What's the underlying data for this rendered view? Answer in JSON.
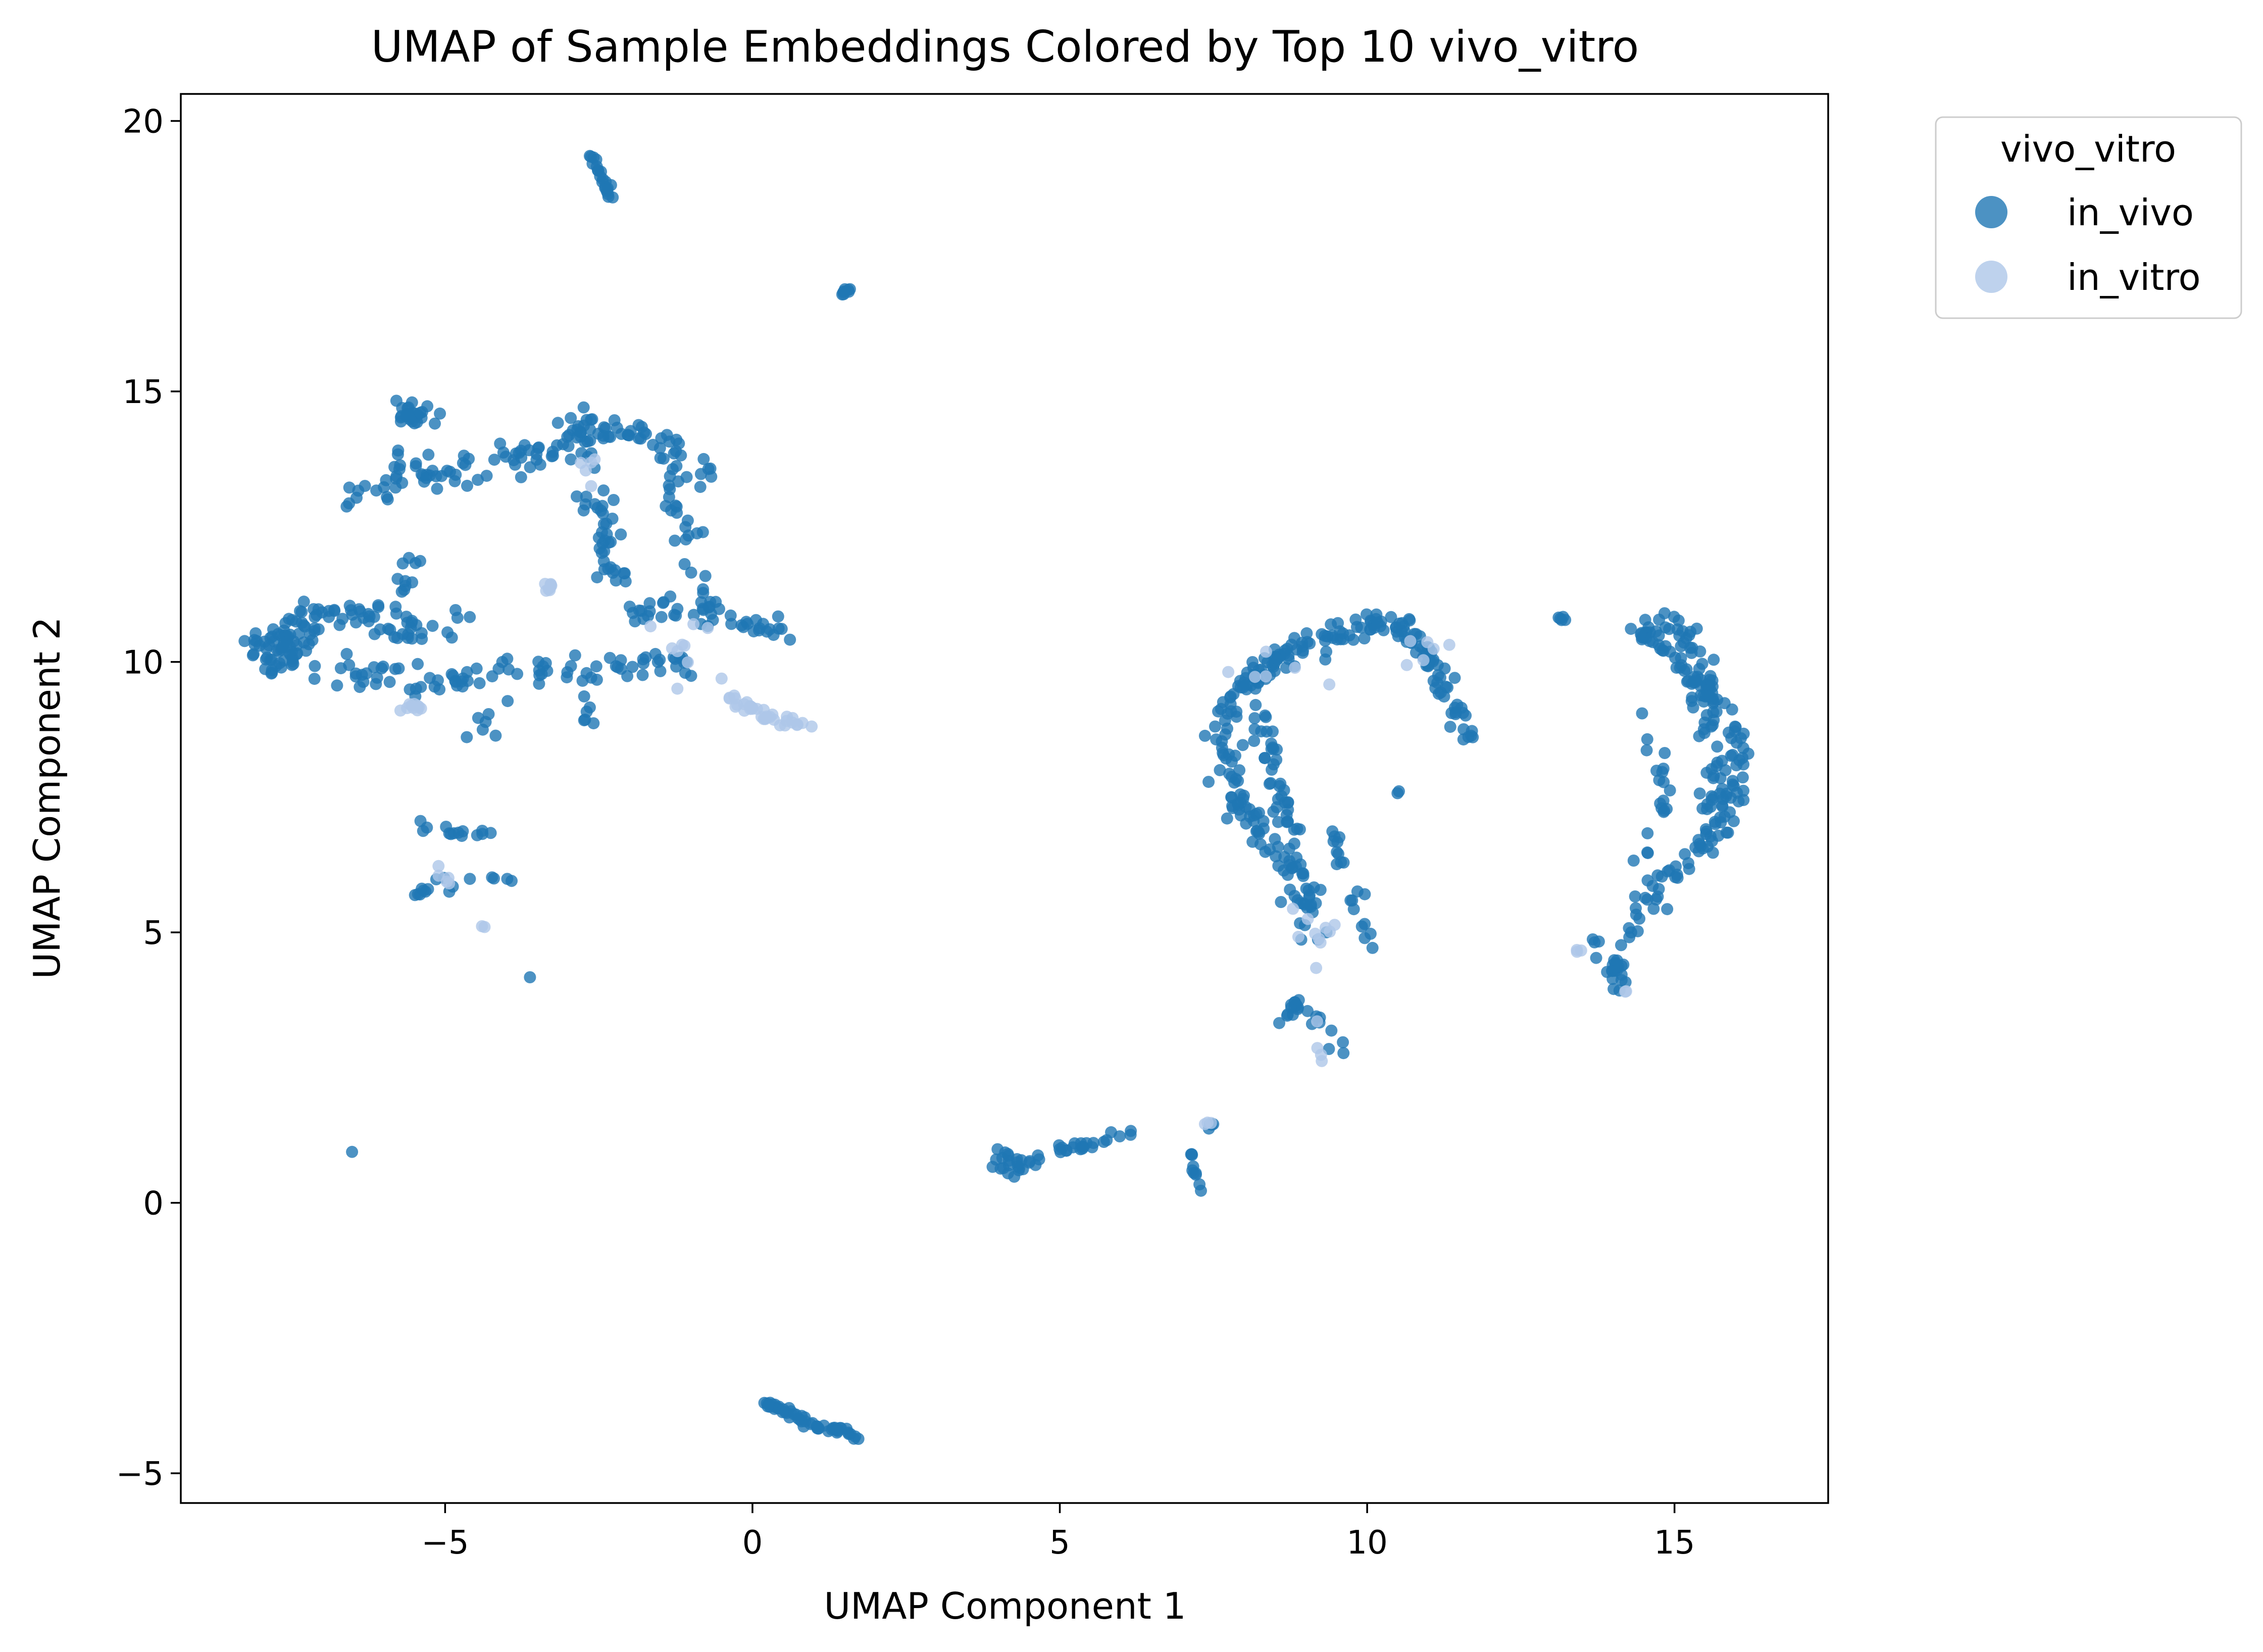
{
  "chart_data": {
    "type": "scatter",
    "title": "UMAP of Sample Embeddings Colored by Top 10 vivo_vitro",
    "xlabel": "UMAP Component 1",
    "ylabel": "UMAP Component 2",
    "xlim": [
      -9.3,
      17.5
    ],
    "ylim": [
      -5.55,
      20.5
    ],
    "xticks": [
      -5,
      0,
      5,
      10,
      15
    ],
    "yticks": [
      -5,
      0,
      5,
      10,
      15,
      20
    ],
    "xtick_labels": [
      "−5",
      "0",
      "5",
      "10",
      "15"
    ],
    "ytick_labels": [
      "−5",
      "0",
      "5",
      "10",
      "15",
      "20"
    ],
    "grid": false,
    "legend": {
      "title": "vivo_vitro",
      "placement": "outside-top-right",
      "entries": [
        "in_vivo",
        "in_vitro"
      ]
    },
    "series": [
      {
        "name": "in_vivo",
        "color": "#1f77b4",
        "clusters": [
          {
            "type": "blob",
            "cx": -7.6,
            "cy": 10.3,
            "rx": 0.6,
            "ry": 0.35,
            "n": 45
          },
          {
            "type": "path",
            "points": [
              [
                -8.1,
                10.1
              ],
              [
                -7.2,
                10.9
              ],
              [
                -6.2,
                10.9
              ],
              [
                -5.6,
                10.5
              ],
              [
                -4.8,
                10.7
              ]
            ],
            "w": 0.3,
            "n": 70
          },
          {
            "type": "path",
            "points": [
              [
                -8.0,
                10.0
              ],
              [
                -7.0,
                9.8
              ],
              [
                -6.0,
                9.7
              ],
              [
                -5.2,
                9.6
              ],
              [
                -4.0,
                9.8
              ],
              [
                -3.0,
                9.8
              ],
              [
                -2.0,
                9.9
              ],
              [
                -1.0,
                10.0
              ]
            ],
            "w": 0.25,
            "n": 95
          },
          {
            "type": "path",
            "points": [
              [
                -6.5,
                12.9
              ],
              [
                -5.8,
                13.6
              ],
              [
                -5.0,
                13.4
              ],
              [
                -4.0,
                13.8
              ],
              [
                -3.0,
                13.9
              ],
              [
                -2.2,
                14.3
              ],
              [
                -1.6,
                14.2
              ],
              [
                -0.8,
                13.4
              ]
            ],
            "w": 0.3,
            "n": 110
          },
          {
            "type": "blob",
            "cx": -5.5,
            "cy": 14.6,
            "rx": 0.25,
            "ry": 0.2,
            "n": 25
          },
          {
            "type": "blob",
            "cx": -2.8,
            "cy": 14.3,
            "rx": 0.3,
            "ry": 0.25,
            "n": 20
          },
          {
            "type": "path",
            "points": [
              [
                -2.8,
                13.9
              ],
              [
                -2.5,
                12.8
              ],
              [
                -2.3,
                11.6
              ],
              [
                -2.0,
                11.0
              ],
              [
                -1.2,
                11.0
              ],
              [
                -0.5,
                10.8
              ],
              [
                0.3,
                10.6
              ],
              [
                0.7,
                10.5
              ]
            ],
            "w": 0.3,
            "n": 85
          },
          {
            "type": "path",
            "points": [
              [
                -1.2,
                14.0
              ],
              [
                -1.2,
                12.8
              ],
              [
                -1.0,
                11.8
              ],
              [
                -0.7,
                11.2
              ]
            ],
            "w": 0.25,
            "n": 25
          },
          {
            "type": "path",
            "points": [
              [
                -5.8,
                11.0
              ],
              [
                -5.6,
                11.9
              ],
              [
                -5.3,
                11.6
              ]
            ],
            "w": 0.2,
            "n": 12
          },
          {
            "type": "path",
            "points": [
              [
                -5.7,
                7.2
              ],
              [
                -5.3,
                7.0
              ],
              [
                -4.7,
                6.8
              ],
              [
                -4.2,
                6.8
              ]
            ],
            "w": 0.15,
            "n": 14
          },
          {
            "type": "path",
            "points": [
              [
                -5.6,
                5.7
              ],
              [
                -5.0,
                5.9
              ],
              [
                -4.5,
                6.0
              ],
              [
                -3.8,
                6.0
              ]
            ],
            "w": 0.15,
            "n": 16
          },
          {
            "type": "blob",
            "cx": -4.4,
            "cy": 8.7,
            "rx": 0.2,
            "ry": 0.3,
            "n": 6
          },
          {
            "type": "blob",
            "cx": -2.7,
            "cy": 9.0,
            "rx": 0.1,
            "ry": 0.2,
            "n": 6
          },
          {
            "type": "blob",
            "cx": -3.6,
            "cy": 4.2,
            "rx": 0.02,
            "ry": 0.02,
            "n": 1
          },
          {
            "type": "blob",
            "cx": -6.5,
            "cy": 0.95,
            "rx": 0.02,
            "ry": 0.02,
            "n": 1
          },
          {
            "type": "path",
            "points": [
              [
                -2.6,
                19.3
              ],
              [
                -2.4,
                18.8
              ],
              [
                -2.2,
                18.5
              ]
            ],
            "w": 0.08,
            "n": 22
          },
          {
            "type": "path",
            "points": [
              [
                1.45,
                16.8
              ],
              [
                1.6,
                16.9
              ]
            ],
            "w": 0.04,
            "n": 8
          },
          {
            "type": "path",
            "points": [
              [
                0.2,
                -3.7
              ],
              [
                0.6,
                -3.9
              ],
              [
                1.0,
                -4.1
              ],
              [
                1.4,
                -4.2
              ],
              [
                1.8,
                -4.35
              ]
            ],
            "w": 0.08,
            "n": 55
          },
          {
            "type": "path",
            "points": [
              [
                4.0,
                0.9
              ],
              [
                4.5,
                0.75
              ],
              [
                5.0,
                1.0
              ],
              [
                5.5,
                1.1
              ],
              [
                6.2,
                1.3
              ]
            ],
            "w": 0.1,
            "n": 35
          },
          {
            "type": "blob",
            "cx": 4.2,
            "cy": 0.65,
            "rx": 0.3,
            "ry": 0.12,
            "n": 12
          },
          {
            "type": "path",
            "points": [
              [
                7.1,
                1.0
              ],
              [
                7.2,
                0.5
              ],
              [
                7.3,
                0.2
              ]
            ],
            "w": 0.08,
            "n": 10
          },
          {
            "type": "path",
            "points": [
              [
                7.3,
                1.3
              ],
              [
                7.5,
                1.5
              ]
            ],
            "w": 0.05,
            "n": 4
          },
          {
            "type": "path",
            "points": [
              [
                7.6,
                8.6
              ],
              [
                7.7,
                9.2
              ],
              [
                8.2,
                9.8
              ],
              [
                8.8,
                10.2
              ],
              [
                9.5,
                10.5
              ],
              [
                10.0,
                10.6
              ],
              [
                10.4,
                10.8
              ]
            ],
            "w": 0.25,
            "n": 110
          },
          {
            "type": "path",
            "points": [
              [
                7.7,
                8.5
              ],
              [
                7.9,
                7.5
              ],
              [
                8.3,
                6.8
              ],
              [
                8.7,
                6.2
              ],
              [
                9.0,
                5.6
              ],
              [
                9.2,
                5.0
              ]
            ],
            "w": 0.3,
            "n": 90
          },
          {
            "type": "path",
            "points": [
              [
                8.3,
                9.3
              ],
              [
                8.4,
                8.3
              ],
              [
                8.6,
                7.2
              ],
              [
                9.0,
                6.6
              ]
            ],
            "w": 0.2,
            "n": 40
          },
          {
            "type": "path",
            "points": [
              [
                10.5,
                10.8
              ],
              [
                10.9,
                10.3
              ],
              [
                11.2,
                9.6
              ],
              [
                11.5,
                9.0
              ],
              [
                11.6,
                8.6
              ]
            ],
            "w": 0.2,
            "n": 60
          },
          {
            "type": "path",
            "points": [
              [
                9.5,
                6.9
              ],
              [
                9.6,
                6.4
              ],
              [
                9.8,
                5.4
              ],
              [
                10.1,
                4.6
              ]
            ],
            "w": 0.15,
            "n": 20
          },
          {
            "type": "path",
            "points": [
              [
                8.6,
                3.3
              ],
              [
                8.9,
                3.7
              ],
              [
                9.3,
                3.2
              ],
              [
                9.6,
                2.7
              ]
            ],
            "w": 0.12,
            "n": 22
          },
          {
            "type": "blob",
            "cx": 10.5,
            "cy": 7.6,
            "rx": 0.05,
            "ry": 0.05,
            "n": 2
          },
          {
            "type": "blob",
            "cx": 13.15,
            "cy": 10.8,
            "rx": 0.08,
            "ry": 0.05,
            "n": 5
          },
          {
            "type": "path",
            "points": [
              [
                14.4,
                10.7
              ],
              [
                15.0,
                10.0
              ],
              [
                15.6,
                9.5
              ],
              [
                16.1,
                8.4
              ],
              [
                15.9,
                7.2
              ],
              [
                15.4,
                6.5
              ],
              [
                14.7,
                5.8
              ],
              [
                14.3,
                5.2
              ],
              [
                14.0,
                4.6
              ],
              [
                14.1,
                3.8
              ]
            ],
            "w": 0.22,
            "n": 150
          },
          {
            "type": "path",
            "points": [
              [
                15.0,
                10.9
              ],
              [
                15.4,
                9.8
              ],
              [
                15.6,
                8.8
              ],
              [
                15.7,
                7.8
              ],
              [
                15.6,
                6.8
              ]
            ],
            "w": 0.25,
            "n": 70
          },
          {
            "type": "path",
            "points": [
              [
                14.4,
                9.0
              ],
              [
                14.7,
                8.4
              ],
              [
                14.8,
                7.4
              ],
              [
                14.6,
                6.6
              ],
              [
                14.4,
                6.4
              ]
            ],
            "w": 0.15,
            "n": 20
          },
          {
            "type": "path",
            "points": [
              [
                13.5,
                4.9
              ],
              [
                13.8,
                4.8
              ]
            ],
            "w": 0.06,
            "n": 3
          }
        ]
      },
      {
        "name": "in_vitro",
        "color": "#aec7e8",
        "clusters": [
          {
            "type": "path",
            "points": [
              [
                -0.3,
                9.3
              ],
              [
                0.2,
                9.0
              ],
              [
                0.6,
                8.9
              ],
              [
                0.9,
                8.8
              ]
            ],
            "w": 0.12,
            "n": 35
          },
          {
            "type": "blob",
            "cx": -5.5,
            "cy": 9.2,
            "rx": 0.18,
            "ry": 0.12,
            "n": 10
          },
          {
            "type": "blob",
            "cx": -3.3,
            "cy": 11.4,
            "rx": 0.1,
            "ry": 0.15,
            "n": 8
          },
          {
            "type": "blob",
            "cx": -1.0,
            "cy": 10.2,
            "rx": 0.6,
            "ry": 0.4,
            "n": 10
          },
          {
            "type": "blob",
            "cx": -5.0,
            "cy": 6.0,
            "rx": 0.2,
            "ry": 0.1,
            "n": 5
          },
          {
            "type": "blob",
            "cx": -4.4,
            "cy": 5.1,
            "rx": 0.05,
            "ry": 0.1,
            "n": 2
          },
          {
            "type": "blob",
            "cx": -2.7,
            "cy": 13.5,
            "rx": 0.2,
            "ry": 0.3,
            "n": 5
          },
          {
            "type": "blob",
            "cx": 9.2,
            "cy": 5.0,
            "rx": 0.4,
            "ry": 0.5,
            "n": 10
          },
          {
            "type": "blob",
            "cx": 10.9,
            "cy": 10.2,
            "rx": 0.3,
            "ry": 0.3,
            "n": 6
          },
          {
            "type": "blob",
            "cx": 9.2,
            "cy": 3.0,
            "rx": 0.15,
            "ry": 0.4,
            "n": 4
          },
          {
            "type": "blob",
            "cx": 7.4,
            "cy": 1.5,
            "rx": 0.08,
            "ry": 0.06,
            "n": 3
          },
          {
            "type": "blob",
            "cx": 13.4,
            "cy": 4.65,
            "rx": 0.1,
            "ry": 0.05,
            "n": 3
          },
          {
            "type": "blob",
            "cx": 14.2,
            "cy": 3.9,
            "rx": 0.05,
            "ry": 0.05,
            "n": 2
          },
          {
            "type": "blob",
            "cx": 8.5,
            "cy": 9.9,
            "rx": 0.6,
            "ry": 0.6,
            "n": 6
          }
        ]
      }
    ]
  }
}
